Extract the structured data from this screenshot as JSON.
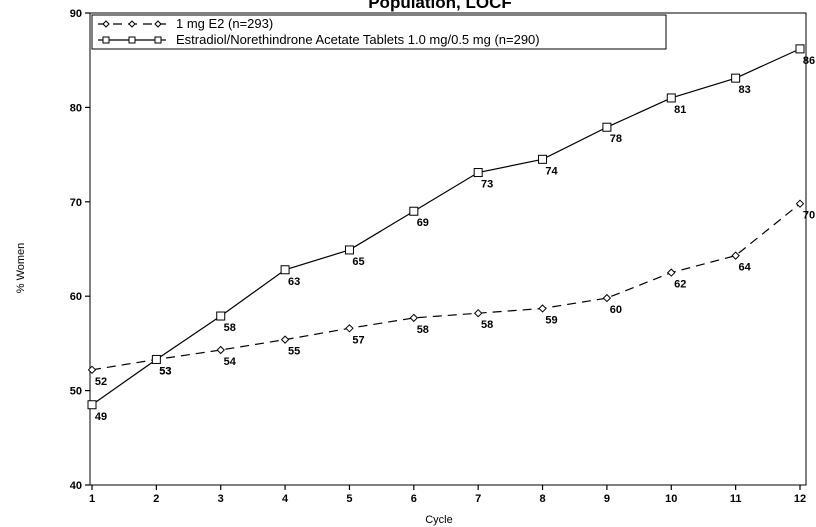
{
  "chart_data": {
    "type": "line",
    "title": "Population, LOCF",
    "xlabel": "Cycle",
    "ylabel": "% Women",
    "x": [
      1,
      2,
      3,
      4,
      5,
      6,
      7,
      8,
      9,
      10,
      11,
      12
    ],
    "ylim": [
      40,
      90
    ],
    "yticks": [
      40,
      50,
      60,
      70,
      80,
      90
    ],
    "grid": false,
    "legend_position": "top-left",
    "series": [
      {
        "name": "1 mg E2 (n=293)",
        "style": "dashed",
        "marker": "diamond",
        "color": "#000000",
        "values": [
          52.2,
          53.3,
          54.3,
          55.4,
          56.6,
          57.7,
          58.2,
          58.7,
          59.8,
          62.5,
          64.3,
          69.8
        ],
        "labels": [
          "52",
          "53",
          "54",
          "55",
          "57",
          "58",
          "58",
          "59",
          "60",
          "62",
          "64",
          "70"
        ]
      },
      {
        "name": "Estradiol/Norethindrone Acetate Tablets 1.0 mg/0.5 mg (n=290)",
        "style": "solid",
        "marker": "square",
        "color": "#000000",
        "values": [
          48.5,
          53.3,
          57.9,
          62.8,
          64.9,
          69.0,
          73.1,
          74.5,
          77.9,
          81.0,
          83.1,
          86.2
        ],
        "labels": [
          "49",
          "53",
          "58",
          "63",
          "65",
          "69",
          "73",
          "74",
          "78",
          "81",
          "83",
          "86"
        ]
      }
    ]
  }
}
